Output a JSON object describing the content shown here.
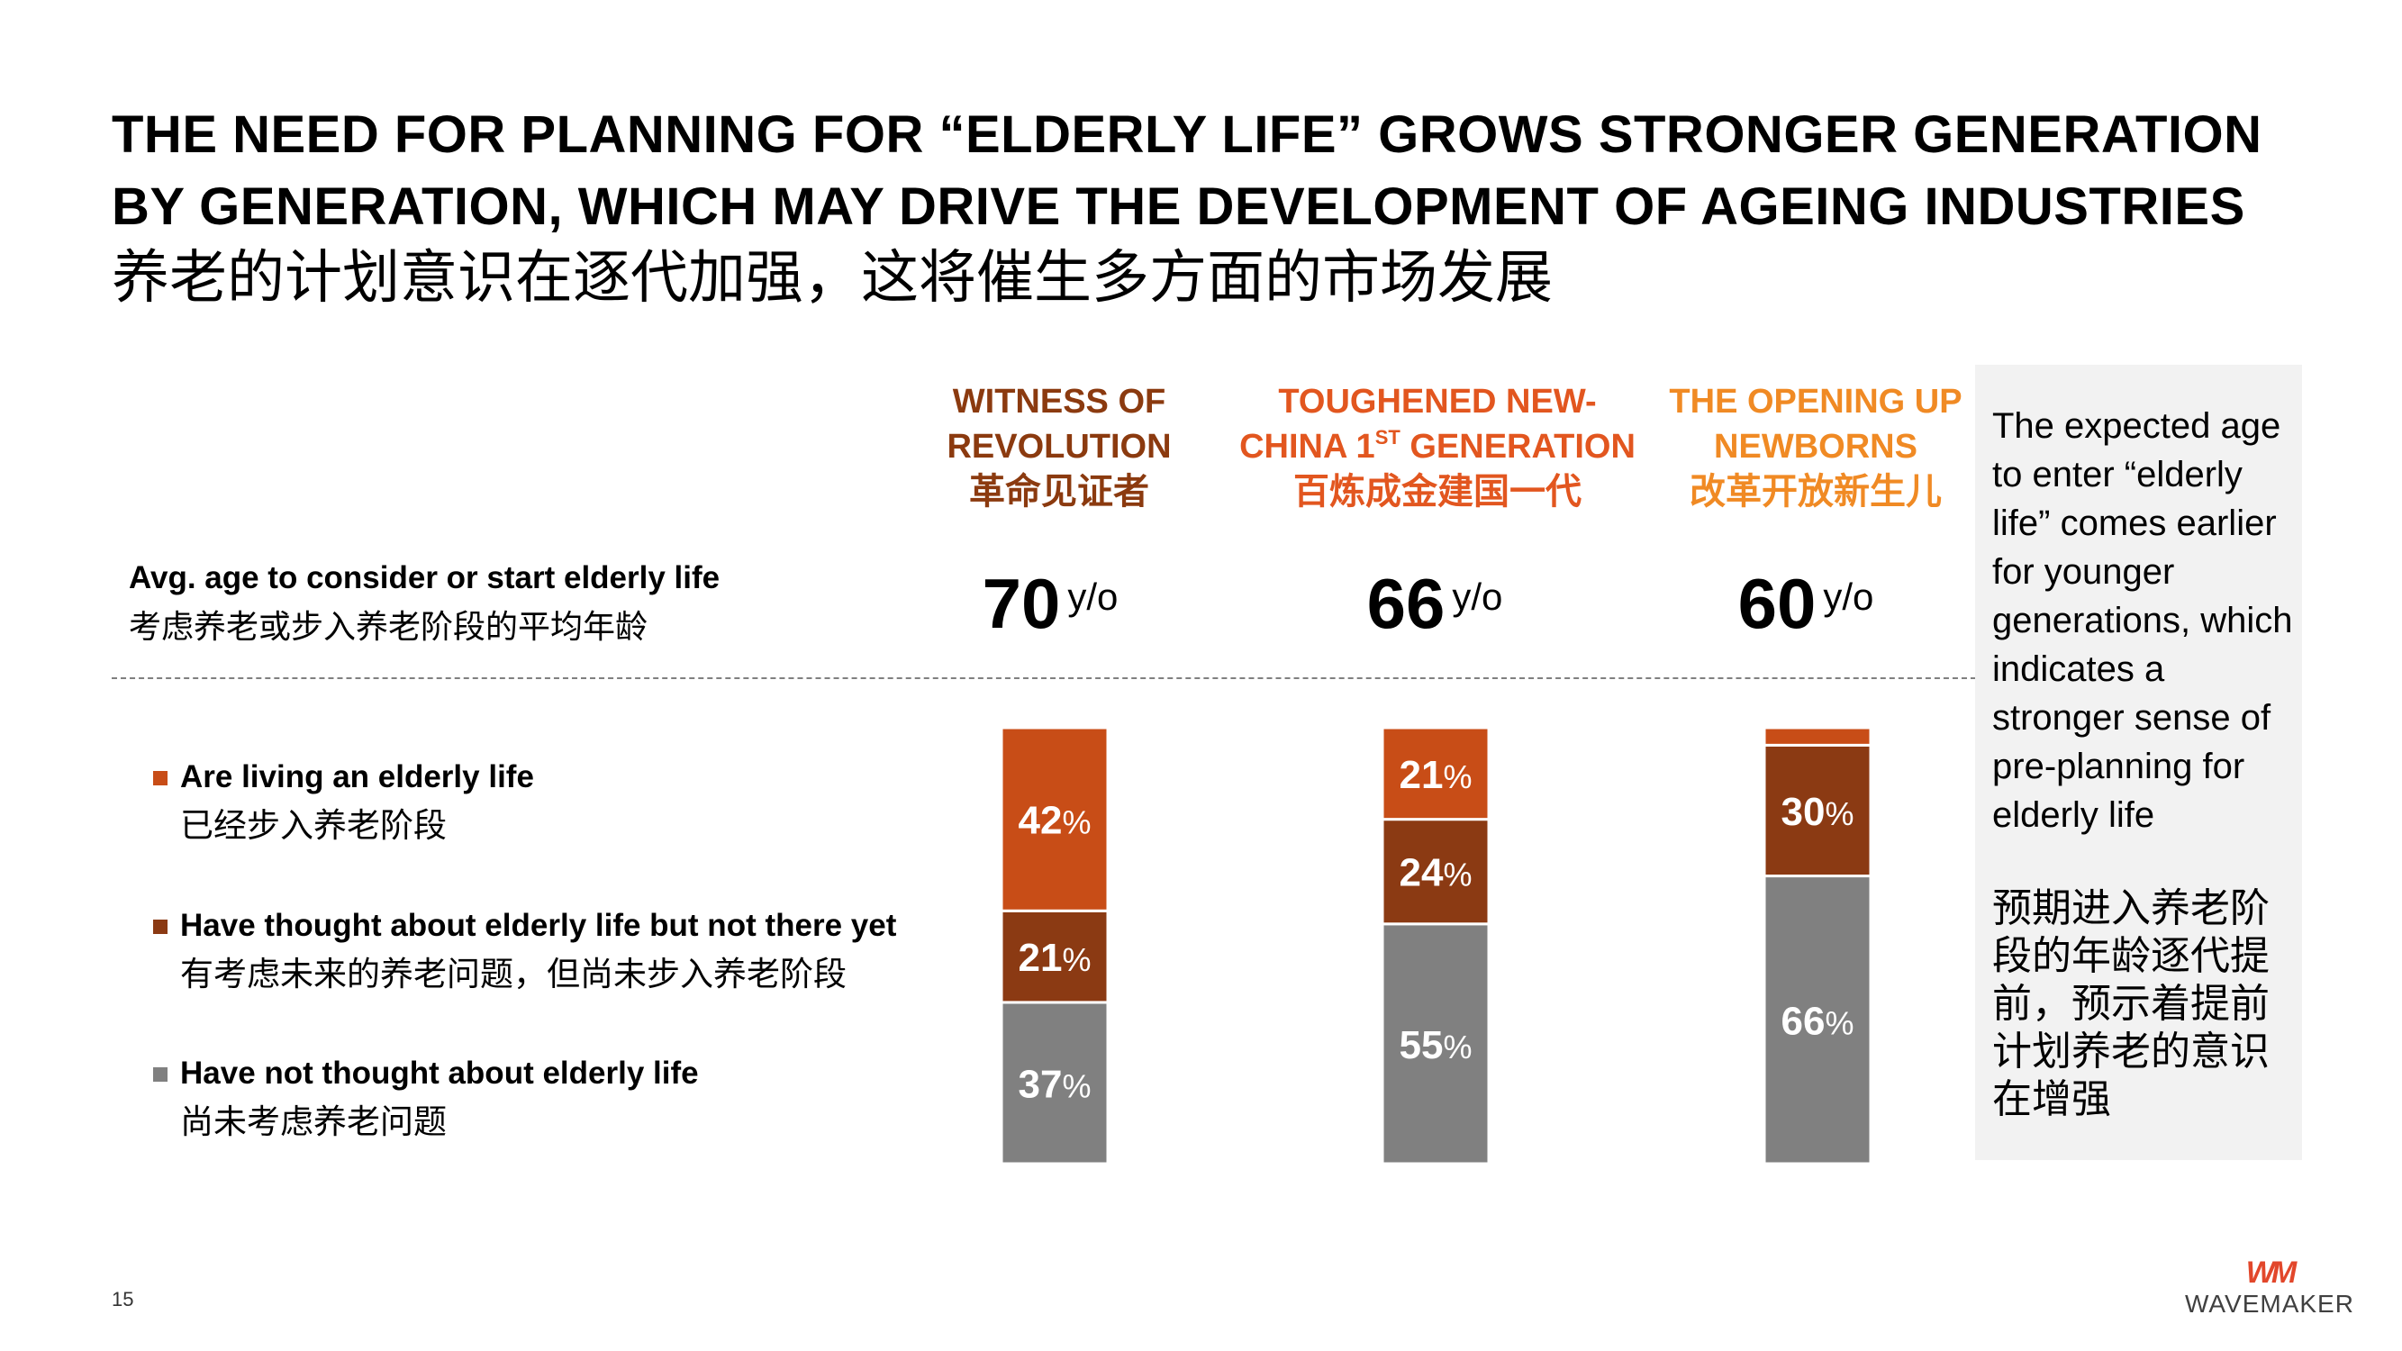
{
  "title": {
    "en_line1": "THE NEED FOR PLANNING FOR “ELDERLY LIFE” GROWS STRONGER GENERATION",
    "en_line2": "BY GENERATION, WHICH MAY DRIVE THE DEVELOPMENT OF AGEING INDUSTRIES",
    "zh": "养老的计划意识在逐代加强，这将催生多方面的市场发展"
  },
  "generations": [
    {
      "line1": "WITNESS OF",
      "line2": "REVOLUTION",
      "line2_sup": "",
      "line2_rest": "",
      "zh": "革命见证者",
      "color": "#8b3a0f",
      "age": "70",
      "unit": "y/o"
    },
    {
      "line1": "TOUGHENED NEW-",
      "line2": "CHINA 1",
      "line2_sup": "ST",
      "line2_rest": " GENERATION",
      "zh": "百炼成金建国一代",
      "color": "#e2561f",
      "age": "66",
      "unit": "y/o"
    },
    {
      "line1": "THE OPENING UP",
      "line2": "NEWBORNS",
      "line2_sup": "",
      "line2_rest": "",
      "zh": "改革开放新生儿",
      "color": "#f08a24",
      "age": "60",
      "unit": "y/o"
    }
  ],
  "age_row": {
    "label_en": "Avg. age to consider or start elderly life",
    "label_zh": "考虑养老或步入养老阶段的平均年龄"
  },
  "legend": [
    {
      "en": "Are living an elderly life",
      "zh": "已经步入养老阶段",
      "color": "#c84d17"
    },
    {
      "en": "Have thought about elderly life but not there yet",
      "zh": "有考虑未来的养老问题，但尚未步入养老阶段",
      "color": "#8b3a13"
    },
    {
      "en": "Have not thought about elderly life",
      "zh": "尚未考虑养老问题",
      "color": "#808080"
    }
  ],
  "chart_data": {
    "type": "bar",
    "stacked": true,
    "normalized_percent": true,
    "categories": [
      "Witness of Revolution",
      "Toughened New-China 1st Generation",
      "The Opening Up Newborns"
    ],
    "series": [
      {
        "name": "Have not thought about elderly life",
        "values": [
          37,
          55,
          66
        ],
        "color": "#808080"
      },
      {
        "name": "Have thought about elderly life but not there yet",
        "values": [
          21,
          24,
          30
        ],
        "color": "#8b3a13"
      },
      {
        "name": "Are living an elderly life",
        "values": [
          42,
          21,
          4
        ],
        "color": "#c84d17"
      }
    ],
    "labels": [
      [
        "37%",
        "21%",
        "42%"
      ],
      [
        "55%",
        "24%",
        "21%"
      ],
      [
        "66%",
        "30%",
        ""
      ]
    ],
    "ylim": [
      0,
      100
    ],
    "grid": false
  },
  "note": {
    "en": "The expected age to enter “elderly life” comes earlier for younger generations, which indicates a stronger sense of pre-planning for elderly life",
    "zh": "预期进入养老阶段的年龄逐代提前，预示着提前计划养老的意识在增强"
  },
  "footer": {
    "page": "15",
    "logo_mark": "WM",
    "logo_text": "WAVEMAKER"
  }
}
